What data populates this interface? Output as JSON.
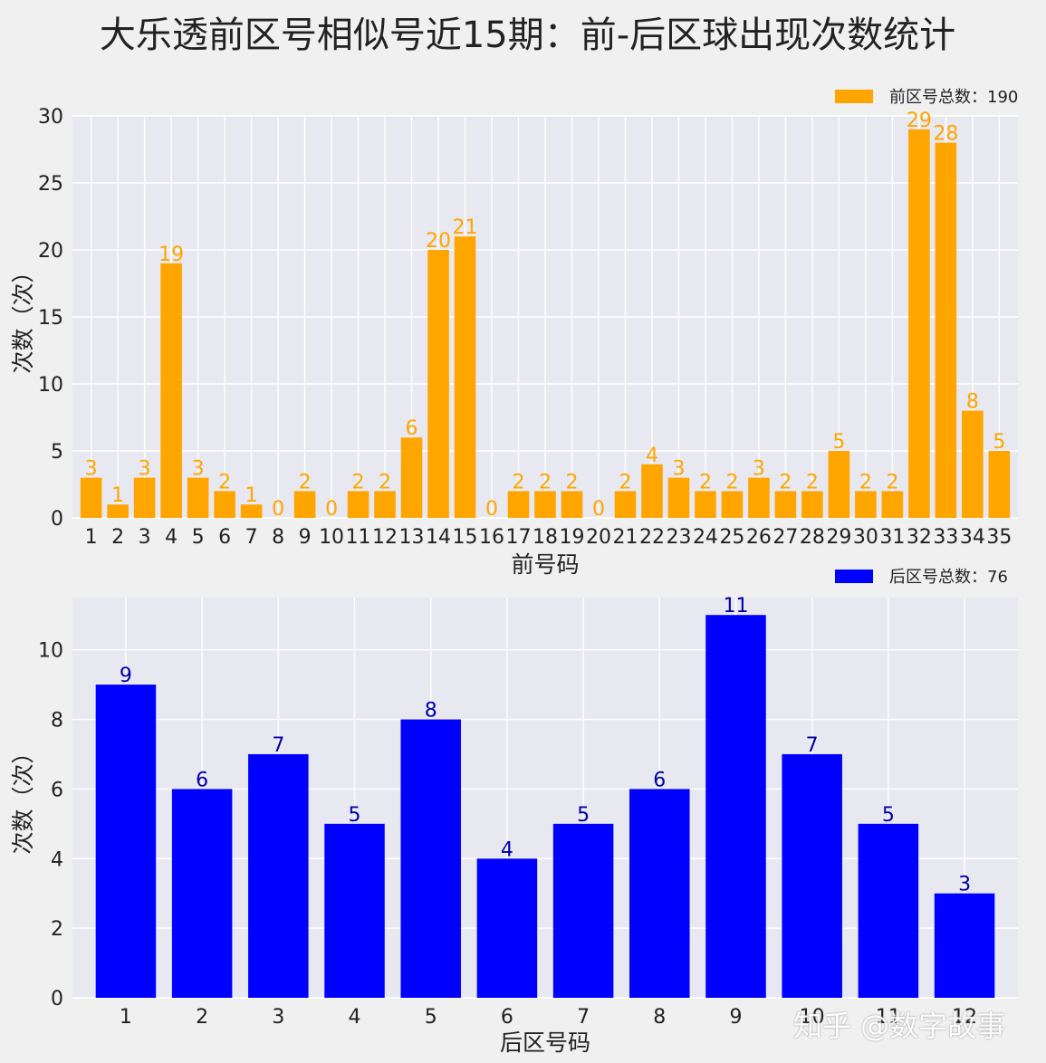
{
  "title": "大乐透前区号相似号近15期：前-后区球出现次数统计",
  "watermark": "知乎 @数字故事",
  "chart_data": [
    {
      "type": "bar",
      "categories": [
        "1",
        "2",
        "3",
        "4",
        "5",
        "6",
        "7",
        "8",
        "9",
        "10",
        "11",
        "12",
        "13",
        "14",
        "15",
        "16",
        "17",
        "18",
        "19",
        "20",
        "21",
        "22",
        "23",
        "24",
        "25",
        "26",
        "27",
        "28",
        "29",
        "30",
        "31",
        "32",
        "33",
        "34",
        "35"
      ],
      "values": [
        3,
        1,
        3,
        19,
        3,
        2,
        1,
        0,
        2,
        0,
        2,
        2,
        6,
        20,
        21,
        0,
        2,
        2,
        2,
        0,
        2,
        4,
        3,
        2,
        2,
        3,
        2,
        2,
        5,
        2,
        2,
        29,
        28,
        8,
        5
      ],
      "xlabel": "前号码",
      "ylabel": "次数（次）",
      "ylim": [
        0,
        30
      ],
      "yticks": [
        0,
        5,
        10,
        15,
        20,
        25,
        30
      ],
      "legend": "前区号总数：190",
      "legend_position": "top-right",
      "color": "#ffa500",
      "grid": true
    },
    {
      "type": "bar",
      "categories": [
        "1",
        "2",
        "3",
        "4",
        "5",
        "6",
        "7",
        "8",
        "9",
        "10",
        "11",
        "12"
      ],
      "values": [
        9,
        6,
        7,
        5,
        8,
        4,
        5,
        6,
        11,
        7,
        5,
        3
      ],
      "xlabel": "后区号码",
      "ylabel": "次数（次）",
      "ylim": [
        0,
        11.5
      ],
      "yticks": [
        0,
        2,
        4,
        6,
        8,
        10
      ],
      "legend": "后区号总数：76",
      "legend_position": "top-right",
      "color": "#0000ff",
      "label_color": "#0000aa",
      "grid": true
    }
  ]
}
